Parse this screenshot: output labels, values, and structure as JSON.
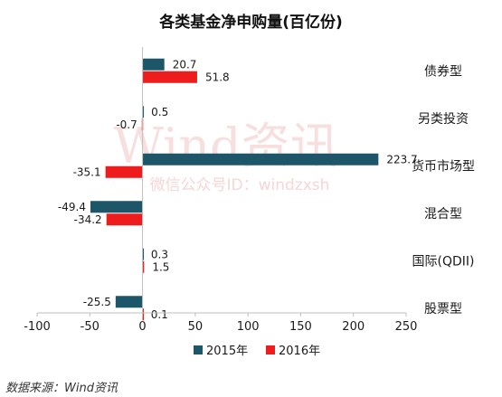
{
  "chart_data": {
    "type": "bar",
    "orientation": "horizontal",
    "title": "各类基金净申购量(百亿份)",
    "categories": [
      "债券型",
      "另类投资",
      "货币市场型",
      "混合型",
      "国际(QDII)",
      "股票型"
    ],
    "series": [
      {
        "name": "2015年",
        "color": "#1d5668",
        "values": [
          20.7,
          0.5,
          223.7,
          -49.4,
          0.3,
          -25.5
        ]
      },
      {
        "name": "2016年",
        "color": "#ee1c1c",
        "values": [
          51.8,
          -0.7,
          -35.1,
          -34.2,
          1.5,
          0.1
        ]
      }
    ],
    "data_labels": {
      "2015年": [
        "20.7",
        "0.5",
        "223.7",
        "-49.4",
        "0.3",
        "-25.5"
      ],
      "2016年": [
        "51.8",
        "-0.7",
        "-35.1",
        "-34.2",
        "1.5",
        "0.1"
      ]
    },
    "xlim": [
      -100,
      250
    ],
    "xticks": [
      -100,
      -50,
      0,
      50,
      100,
      150,
      200,
      250
    ],
    "xtick_labels": [
      "-100",
      "-50",
      "0",
      "50",
      "100",
      "150",
      "200",
      "250"
    ],
    "legend": "bottom",
    "grid": false
  },
  "watermark": {
    "brand": "Wind资讯",
    "sub": "微信公众号ID：windzxsh"
  },
  "source": "数据来源：Wind资讯"
}
